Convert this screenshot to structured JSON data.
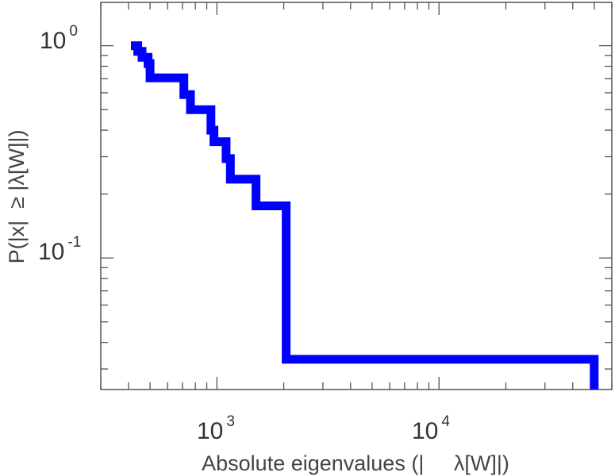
{
  "chart_data": {
    "type": "line",
    "title": "",
    "xlabel": "Absolute eigenvalues (|     λ[W]|)",
    "ylabel": "P(|x|  ≥ |λ[W]|)",
    "x_scale": "log",
    "y_scale": "log",
    "xlim": [
      300,
      60000
    ],
    "ylim": [
      0.024,
      1.6
    ],
    "grid": false,
    "legend": "none",
    "line_style": "step-post",
    "x_ticks": [
      {
        "value": 1000,
        "base": "10",
        "exp": "3"
      },
      {
        "value": 10000,
        "base": "10",
        "exp": "4"
      }
    ],
    "y_ticks": [
      {
        "value": 1,
        "base": "10",
        "exp": "0"
      },
      {
        "value": 0.1,
        "base": "10",
        "exp": "-1"
      }
    ],
    "series": [
      {
        "color": "#0000ff",
        "x": [
          410,
          440,
          460,
          490,
          500,
          710,
          760,
          940,
          970,
          1100,
          1150,
          1500,
          2050,
          50000
        ],
        "y": [
          1.0,
          0.941,
          0.882,
          0.824,
          0.706,
          0.588,
          0.5,
          0.4,
          0.353,
          0.294,
          0.235,
          0.176,
          0.0333,
          0.0333
        ]
      }
    ],
    "series_end_y": 0.024
  }
}
